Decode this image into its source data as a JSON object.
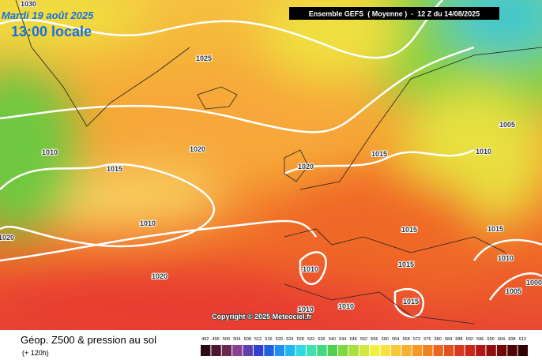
{
  "header": {
    "date": "Mardi 19 août 2025",
    "time": "13:00 locale",
    "model": "Ensemble GEFS  ( Moyenne )  -  12 Z du 14/08/2025"
  },
  "copyright": "Copyright © 2025 Meteociel.fr",
  "footer": {
    "title": "Géop. Z500 & pression au sol",
    "lead": "(+ 120h)"
  },
  "isobar_labels": [
    "1030",
    "1025",
    "1020",
    "1015",
    "1010",
    "1020",
    "1015",
    "1010",
    "1005",
    "1010",
    "1020",
    "1020",
    "1015",
    "1015",
    "1010",
    "1015",
    "1010",
    "1000",
    "1005",
    "1015",
    "1010",
    "1010"
  ],
  "legend": {
    "values": [
      492,
      496,
      500,
      504,
      508,
      512,
      516,
      520,
      524,
      528,
      532,
      536,
      540,
      544,
      548,
      552,
      556,
      560,
      564,
      568,
      572,
      576,
      580,
      584,
      588,
      592,
      596,
      600,
      604,
      608,
      612
    ],
    "colors": [
      "#2a0a14",
      "#4a1630",
      "#6a2850",
      "#8a4090",
      "#6040b0",
      "#3040d0",
      "#2060e0",
      "#2090f0",
      "#20b8f0",
      "#30d8e0",
      "#40e0b0",
      "#40d880",
      "#50d050",
      "#80d840",
      "#a8e040",
      "#d0e840",
      "#f0f040",
      "#f8e040",
      "#f8c838",
      "#f8b030",
      "#f89828",
      "#f08020",
      "#e86820",
      "#e05020",
      "#d83820",
      "#c82818",
      "#b01818",
      "#901010",
      "#700808",
      "#500404",
      "#300000"
    ]
  }
}
